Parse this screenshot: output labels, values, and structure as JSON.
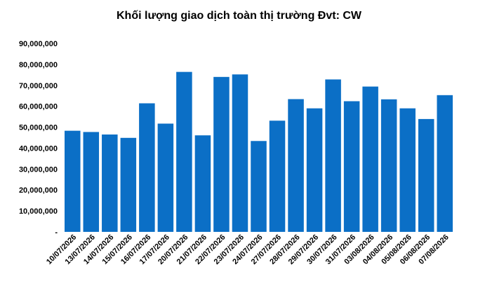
{
  "chart_data": {
    "type": "bar",
    "title": "Khối lượng giao dịch toàn thị trường Đvt: CW",
    "categories": [
      "10/07/2026",
      "13/07/2026",
      "14/07/2026",
      "15/07/2026",
      "16/07/2026",
      "17/07/2026",
      "20/07/2026",
      "21/07/2026",
      "22/07/2026",
      "23/07/2026",
      "24/07/2026",
      "27/07/2026",
      "28/07/2026",
      "29/07/2026",
      "30/07/2026",
      "31/07/2026",
      "03/08/2026",
      "04/08/2026",
      "05/08/2026",
      "06/08/2026",
      "07/08/2026"
    ],
    "values": [
      48300000,
      47700000,
      46500000,
      44900000,
      61400000,
      51700000,
      76400000,
      46100000,
      74000000,
      75200000,
      43400000,
      53100000,
      63400000,
      59000000,
      72800000,
      62400000,
      69400000,
      63300000,
      59000000,
      53900000,
      65300000
    ],
    "ylim": [
      0,
      90000000
    ],
    "yticks": [
      0,
      10000000,
      20000000,
      30000000,
      40000000,
      50000000,
      60000000,
      70000000,
      80000000,
      90000000
    ],
    "ytick_labels": [
      "-",
      "10,000,000",
      "20,000,000",
      "30,000,000",
      "40,000,000",
      "50,000,000",
      "60,000,000",
      "70,000,000",
      "80,000,000",
      "90,000,000"
    ],
    "xlabel": "",
    "ylabel": "",
    "grid": false,
    "colors": {
      "bar": "#0b6fc6"
    }
  }
}
